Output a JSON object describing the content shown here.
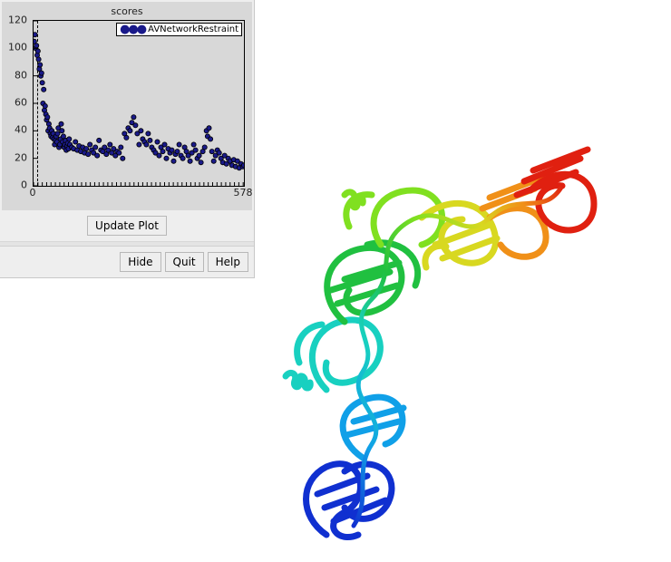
{
  "plot": {
    "type": "scatter",
    "title": "scores",
    "legend_label": "AVNetworkRestraint",
    "xlim": [
      0,
      578
    ],
    "ylim": [
      0,
      120
    ],
    "x_ticks": [
      0,
      578
    ],
    "y_ticks": [
      0,
      20,
      40,
      60,
      80,
      100,
      120
    ],
    "dash_x": 10,
    "background_color": "#d8d8d8",
    "panel_color": "#eeeeee",
    "marker_fill": "#1a1a8a",
    "marker_stroke": "#000000",
    "marker_radius": 2.6,
    "values": [
      [
        2,
        105
      ],
      [
        4,
        110
      ],
      [
        6,
        100
      ],
      [
        8,
        102
      ],
      [
        10,
        95
      ],
      [
        12,
        98
      ],
      [
        14,
        92
      ],
      [
        16,
        85
      ],
      [
        18,
        88
      ],
      [
        20,
        80
      ],
      [
        22,
        82
      ],
      [
        24,
        75
      ],
      [
        26,
        60
      ],
      [
        28,
        70
      ],
      [
        30,
        55
      ],
      [
        32,
        58
      ],
      [
        34,
        52
      ],
      [
        36,
        48
      ],
      [
        38,
        50
      ],
      [
        40,
        40
      ],
      [
        42,
        45
      ],
      [
        44,
        42
      ],
      [
        46,
        38
      ],
      [
        48,
        36
      ],
      [
        50,
        40
      ],
      [
        52,
        35
      ],
      [
        54,
        38
      ],
      [
        56,
        34
      ],
      [
        58,
        30
      ],
      [
        60,
        33
      ],
      [
        62,
        36
      ],
      [
        64,
        32
      ],
      [
        66,
        38
      ],
      [
        68,
        42
      ],
      [
        70,
        28
      ],
      [
        72,
        30
      ],
      [
        74,
        34
      ],
      [
        76,
        45
      ],
      [
        78,
        40
      ],
      [
        80,
        32
      ],
      [
        82,
        36
      ],
      [
        84,
        28
      ],
      [
        86,
        30
      ],
      [
        88,
        33
      ],
      [
        90,
        26
      ],
      [
        92,
        29
      ],
      [
        94,
        31
      ],
      [
        96,
        27
      ],
      [
        98,
        34
      ],
      [
        100,
        30
      ],
      [
        105,
        28
      ],
      [
        110,
        27
      ],
      [
        115,
        32
      ],
      [
        120,
        26
      ],
      [
        125,
        29
      ],
      [
        130,
        25
      ],
      [
        135,
        28
      ],
      [
        140,
        24
      ],
      [
        145,
        27
      ],
      [
        150,
        23
      ],
      [
        155,
        30
      ],
      [
        160,
        26
      ],
      [
        165,
        24
      ],
      [
        170,
        28
      ],
      [
        175,
        22
      ],
      [
        180,
        33
      ],
      [
        185,
        26
      ],
      [
        190,
        25
      ],
      [
        195,
        28
      ],
      [
        200,
        23
      ],
      [
        205,
        26
      ],
      [
        210,
        30
      ],
      [
        215,
        24
      ],
      [
        220,
        27
      ],
      [
        225,
        22
      ],
      [
        230,
        25
      ],
      [
        235,
        24
      ],
      [
        240,
        28
      ],
      [
        245,
        20
      ],
      [
        250,
        38
      ],
      [
        255,
        35
      ],
      [
        260,
        42
      ],
      [
        265,
        40
      ],
      [
        270,
        46
      ],
      [
        275,
        50
      ],
      [
        280,
        44
      ],
      [
        285,
        38
      ],
      [
        290,
        30
      ],
      [
        295,
        40
      ],
      [
        300,
        34
      ],
      [
        305,
        32
      ],
      [
        310,
        30
      ],
      [
        315,
        38
      ],
      [
        320,
        33
      ],
      [
        325,
        28
      ],
      [
        330,
        26
      ],
      [
        335,
        24
      ],
      [
        340,
        32
      ],
      [
        345,
        22
      ],
      [
        350,
        28
      ],
      [
        355,
        25
      ],
      [
        360,
        30
      ],
      [
        365,
        20
      ],
      [
        370,
        27
      ],
      [
        375,
        24
      ],
      [
        380,
        26
      ],
      [
        385,
        18
      ],
      [
        390,
        23
      ],
      [
        395,
        25
      ],
      [
        400,
        30
      ],
      [
        405,
        22
      ],
      [
        410,
        20
      ],
      [
        415,
        28
      ],
      [
        420,
        25
      ],
      [
        425,
        22
      ],
      [
        430,
        18
      ],
      [
        435,
        24
      ],
      [
        440,
        30
      ],
      [
        445,
        26
      ],
      [
        450,
        20
      ],
      [
        455,
        22
      ],
      [
        460,
        17
      ],
      [
        465,
        25
      ],
      [
        470,
        28
      ],
      [
        475,
        40
      ],
      [
        478,
        36
      ],
      [
        482,
        42
      ],
      [
        486,
        34
      ],
      [
        490,
        25
      ],
      [
        495,
        18
      ],
      [
        500,
        22
      ],
      [
        505,
        26
      ],
      [
        510,
        24
      ],
      [
        515,
        20
      ],
      [
        520,
        17
      ],
      [
        525,
        22
      ],
      [
        530,
        16
      ],
      [
        535,
        20
      ],
      [
        540,
        18
      ],
      [
        545,
        15
      ],
      [
        550,
        19
      ],
      [
        555,
        14
      ],
      [
        560,
        18
      ],
      [
        565,
        13
      ],
      [
        570,
        16
      ],
      [
        575,
        14
      ],
      [
        578,
        15
      ]
    ],
    "rug_step": 12
  },
  "buttons": {
    "update_plot": "Update Plot",
    "hide": "Hide",
    "quit": "Quit",
    "help": "Help"
  },
  "protein": {
    "description": "ribbon-cartoon protein structure, rainbow colored N→C",
    "color_stops": [
      "#1030d0",
      "#10a0e8",
      "#18d0c0",
      "#20c040",
      "#80e020",
      "#d8d820",
      "#f09018",
      "#e02010"
    ]
  }
}
